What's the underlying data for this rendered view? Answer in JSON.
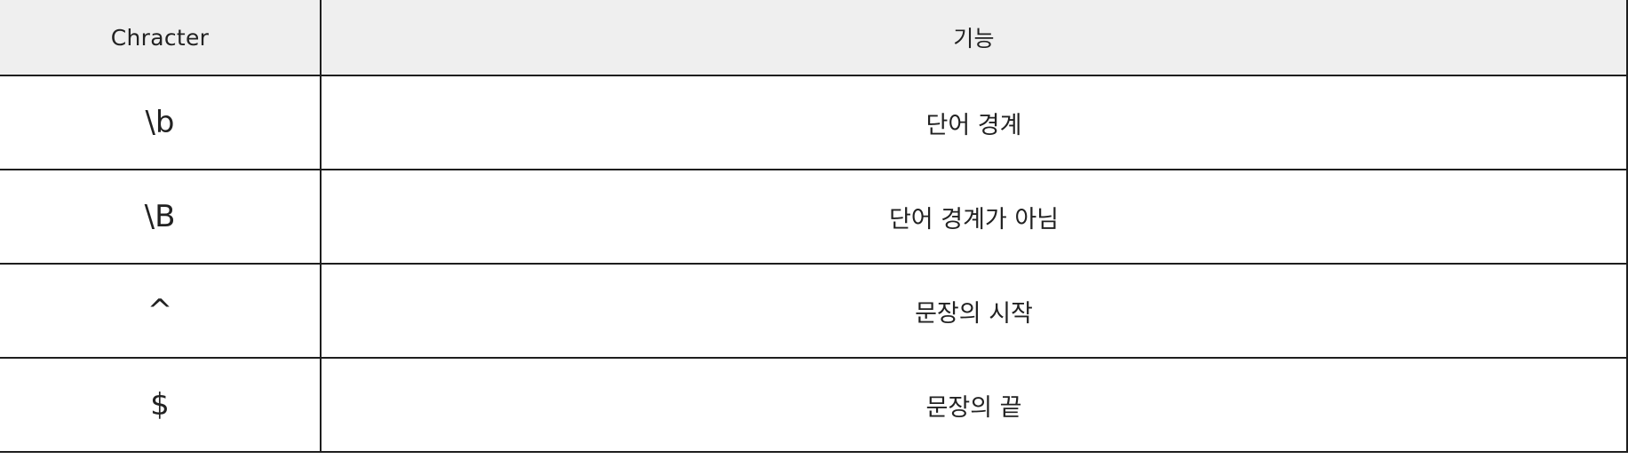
{
  "table": {
    "headers": {
      "character": "Chracter",
      "function": "기능"
    },
    "rows": [
      {
        "character": "\\b",
        "function": "단어 경계"
      },
      {
        "character": "\\B",
        "function": "단어 경계가 아님"
      },
      {
        "character": "^",
        "function": "문장의 시작"
      },
      {
        "character": "$",
        "function": "문장의 끝"
      }
    ]
  }
}
